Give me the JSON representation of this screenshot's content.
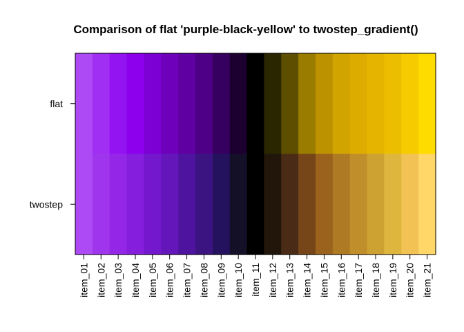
{
  "chart_data": {
    "type": "heatmap",
    "title": "Comparison of flat 'purple-black-yellow' to twostep_gradient()",
    "xlabel": "",
    "ylabel": "",
    "columns": [
      "item_01",
      "item_02",
      "item_03",
      "item_04",
      "item_05",
      "item_06",
      "item_07",
      "item_08",
      "item_09",
      "item_10",
      "item_11",
      "item_12",
      "item_13",
      "item_14",
      "item_15",
      "item_16",
      "item_17",
      "item_18",
      "item_19",
      "item_20",
      "item_21"
    ],
    "rows": [
      {
        "name": "flat",
        "colors": [
          "#AD4AF5",
          "#A02EF3",
          "#9414F1",
          "#8C00EE",
          "#7C00D4",
          "#6E00BC",
          "#5E00A2",
          "#4E0086",
          "#360060",
          "#1C0030",
          "#000000",
          "#2A2600",
          "#5E4E00",
          "#9A7C00",
          "#BC9200",
          "#D2A400",
          "#DCAC00",
          "#E4B400",
          "#ECBE00",
          "#F6CC00",
          "#FFDC00"
        ]
      },
      {
        "name": "twostep",
        "colors": [
          "#AD4AF5",
          "#A035EE",
          "#9426E8",
          "#861EDE",
          "#7418CE",
          "#6416BA",
          "#4E14A0",
          "#3C1482",
          "#24125E",
          "#141028",
          "#000000",
          "#22160A",
          "#4A2C16",
          "#764618",
          "#9A621C",
          "#AE7A24",
          "#C08E2A",
          "#CEA232",
          "#DEB63E",
          "#F2C254",
          "#FFD668"
        ]
      }
    ],
    "legend": "none",
    "grid": false
  }
}
